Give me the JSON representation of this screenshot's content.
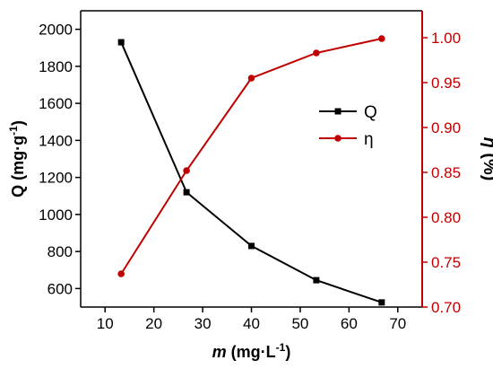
{
  "chart_data": {
    "type": "line",
    "x": [
      13.3,
      26.7,
      40,
      53.3,
      66.7
    ],
    "xlim": [
      5,
      75
    ],
    "xticks": [
      10,
      20,
      30,
      40,
      50,
      60,
      70
    ],
    "xlabel_italic": "m",
    "xlabel_unit": " (mg·L",
    "xlabel_sup": "-1",
    "xlabel_end": ")",
    "grid": false,
    "legend_position": "center-right",
    "left_axis": {
      "label": "Q  (mg·g",
      "label_sup": "-1",
      "label_end": ")",
      "ylim": [
        500,
        2100
      ],
      "ticks": [
        600,
        800,
        1000,
        1200,
        1400,
        1600,
        1800,
        2000
      ],
      "color": "#000000"
    },
    "right_axis": {
      "label_italic": "η",
      "label_unit": " (%)",
      "ylim": [
        0.7,
        1.03
      ],
      "ticks": [
        "0.70",
        "0.75",
        "0.80",
        "0.85",
        "0.90",
        "0.95",
        "1.00"
      ],
      "color": "#c00000"
    },
    "series": [
      {
        "name": "Q",
        "axis": "left",
        "marker": "square",
        "color": "#000000",
        "values": [
          1930,
          1120,
          830,
          645,
          525
        ]
      },
      {
        "name": "η",
        "axis": "right",
        "marker": "circle",
        "color": "#c00000",
        "values": [
          0.737,
          0.852,
          0.955,
          0.983,
          0.999
        ]
      }
    ]
  }
}
